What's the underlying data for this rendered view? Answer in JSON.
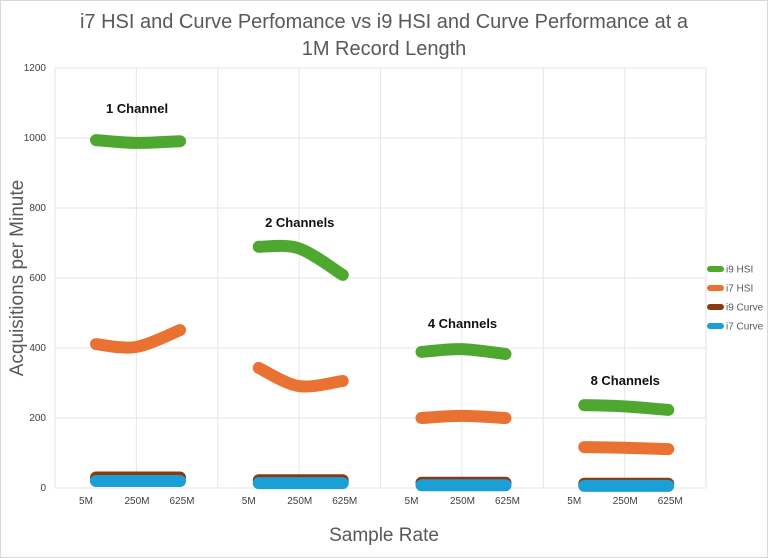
{
  "chart_data": {
    "type": "line",
    "title": "i7 HSI and Curve Perfomance vs i9 HSI and Curve Performance at a 1M Record Length",
    "title_lines": [
      "i7 HSI and Curve Perfomance vs i9 HSI and Curve Performance at a",
      "1M Record Length"
    ],
    "xlabel": "Sample Rate",
    "ylabel": "Acquisitions per Minute",
    "ylim": [
      0,
      1200
    ],
    "yticks": [
      0,
      200,
      400,
      600,
      800,
      1000,
      1200
    ],
    "grid": true,
    "legend_position": "right",
    "categories": [
      "5M",
      "250M",
      "625M"
    ],
    "groups": [
      {
        "label": "1 Channel",
        "series": {
          "i9 HSI": [
            994,
            986,
            991
          ],
          "i7 HSI": [
            411,
            403,
            451
          ],
          "i9 Curve": [
            30,
            30,
            30
          ],
          "i7 Curve": [
            20,
            20,
            20
          ]
        }
      },
      {
        "label": "2 Channels",
        "series": {
          "i9 HSI": [
            689,
            685,
            609
          ],
          "i7 HSI": [
            343,
            291,
            306
          ],
          "i9 Curve": [
            22,
            22,
            22
          ],
          "i7 Curve": [
            14,
            14,
            14
          ]
        }
      },
      {
        "label": "4 Channels",
        "series": {
          "i9 HSI": [
            389,
            397,
            383
          ],
          "i7 HSI": [
            200,
            206,
            200
          ],
          "i9 Curve": [
            15,
            15,
            15
          ],
          "i7 Curve": [
            8,
            8,
            8
          ]
        }
      },
      {
        "label": "8 Channels",
        "series": {
          "i9 HSI": [
            237,
            233,
            223
          ],
          "i7 HSI": [
            117,
            115,
            111
          ],
          "i9 Curve": [
            12,
            12,
            12
          ],
          "i7 Curve": [
            6,
            6,
            6
          ]
        }
      }
    ],
    "series": [
      {
        "name": "i9 HSI",
        "color": "#4ea72e"
      },
      {
        "name": "i7 HSI",
        "color": "#e97132"
      },
      {
        "name": "i9 Curve",
        "color": "#8b3a0f"
      },
      {
        "name": "i7 Curve",
        "color": "#1a9fd6"
      }
    ]
  }
}
